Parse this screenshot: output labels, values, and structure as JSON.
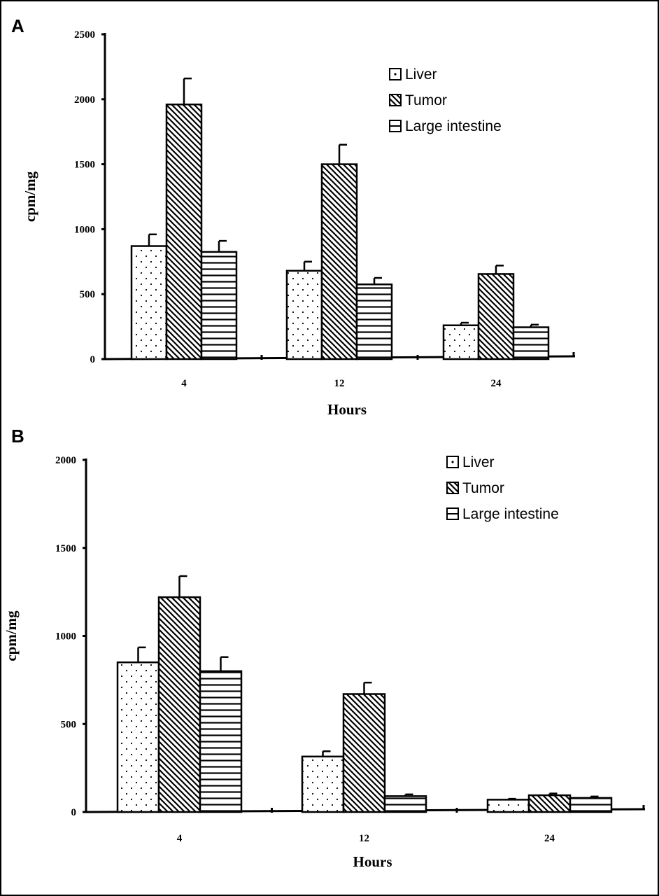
{
  "figure": {
    "panel_letters": [
      "A",
      "B"
    ]
  },
  "chart_data": [
    {
      "type": "bar",
      "panel": "A",
      "categories": [
        "4",
        "12",
        "24"
      ],
      "xlabel": "Hours",
      "ylabel": "cpm/mg",
      "ylim": [
        0,
        2500
      ],
      "yticks": [
        0,
        500,
        1000,
        1500,
        2000,
        2500
      ],
      "legend_position": "top-right",
      "grid": false,
      "series": [
        {
          "name": "Liver",
          "pattern": "dots",
          "values": [
            870,
            680,
            260
          ],
          "errors": [
            90,
            70,
            20
          ]
        },
        {
          "name": "Tumor",
          "pattern": "diagonal",
          "values": [
            1960,
            1500,
            655
          ],
          "errors": [
            200,
            150,
            65
          ]
        },
        {
          "name": "Large intestine",
          "pattern": "horizontal",
          "values": [
            825,
            575,
            245
          ],
          "errors": [
            85,
            50,
            20
          ]
        }
      ]
    },
    {
      "type": "bar",
      "panel": "B",
      "categories": [
        "4",
        "12",
        "24"
      ],
      "xlabel": "Hours",
      "ylabel": "cpm/mg",
      "ylim": [
        0,
        2000
      ],
      "yticks": [
        0,
        500,
        1000,
        1500,
        2000
      ],
      "legend_position": "top-right",
      "grid": false,
      "series": [
        {
          "name": "Liver",
          "pattern": "dots",
          "values": [
            850,
            315,
            70
          ],
          "errors": [
            85,
            30,
            5
          ]
        },
        {
          "name": "Tumor",
          "pattern": "diagonal",
          "values": [
            1220,
            670,
            95
          ],
          "errors": [
            120,
            65,
            10
          ]
        },
        {
          "name": "Large intestine",
          "pattern": "horizontal",
          "values": [
            800,
            90,
            80
          ],
          "errors": [
            80,
            10,
            8
          ]
        }
      ]
    }
  ]
}
